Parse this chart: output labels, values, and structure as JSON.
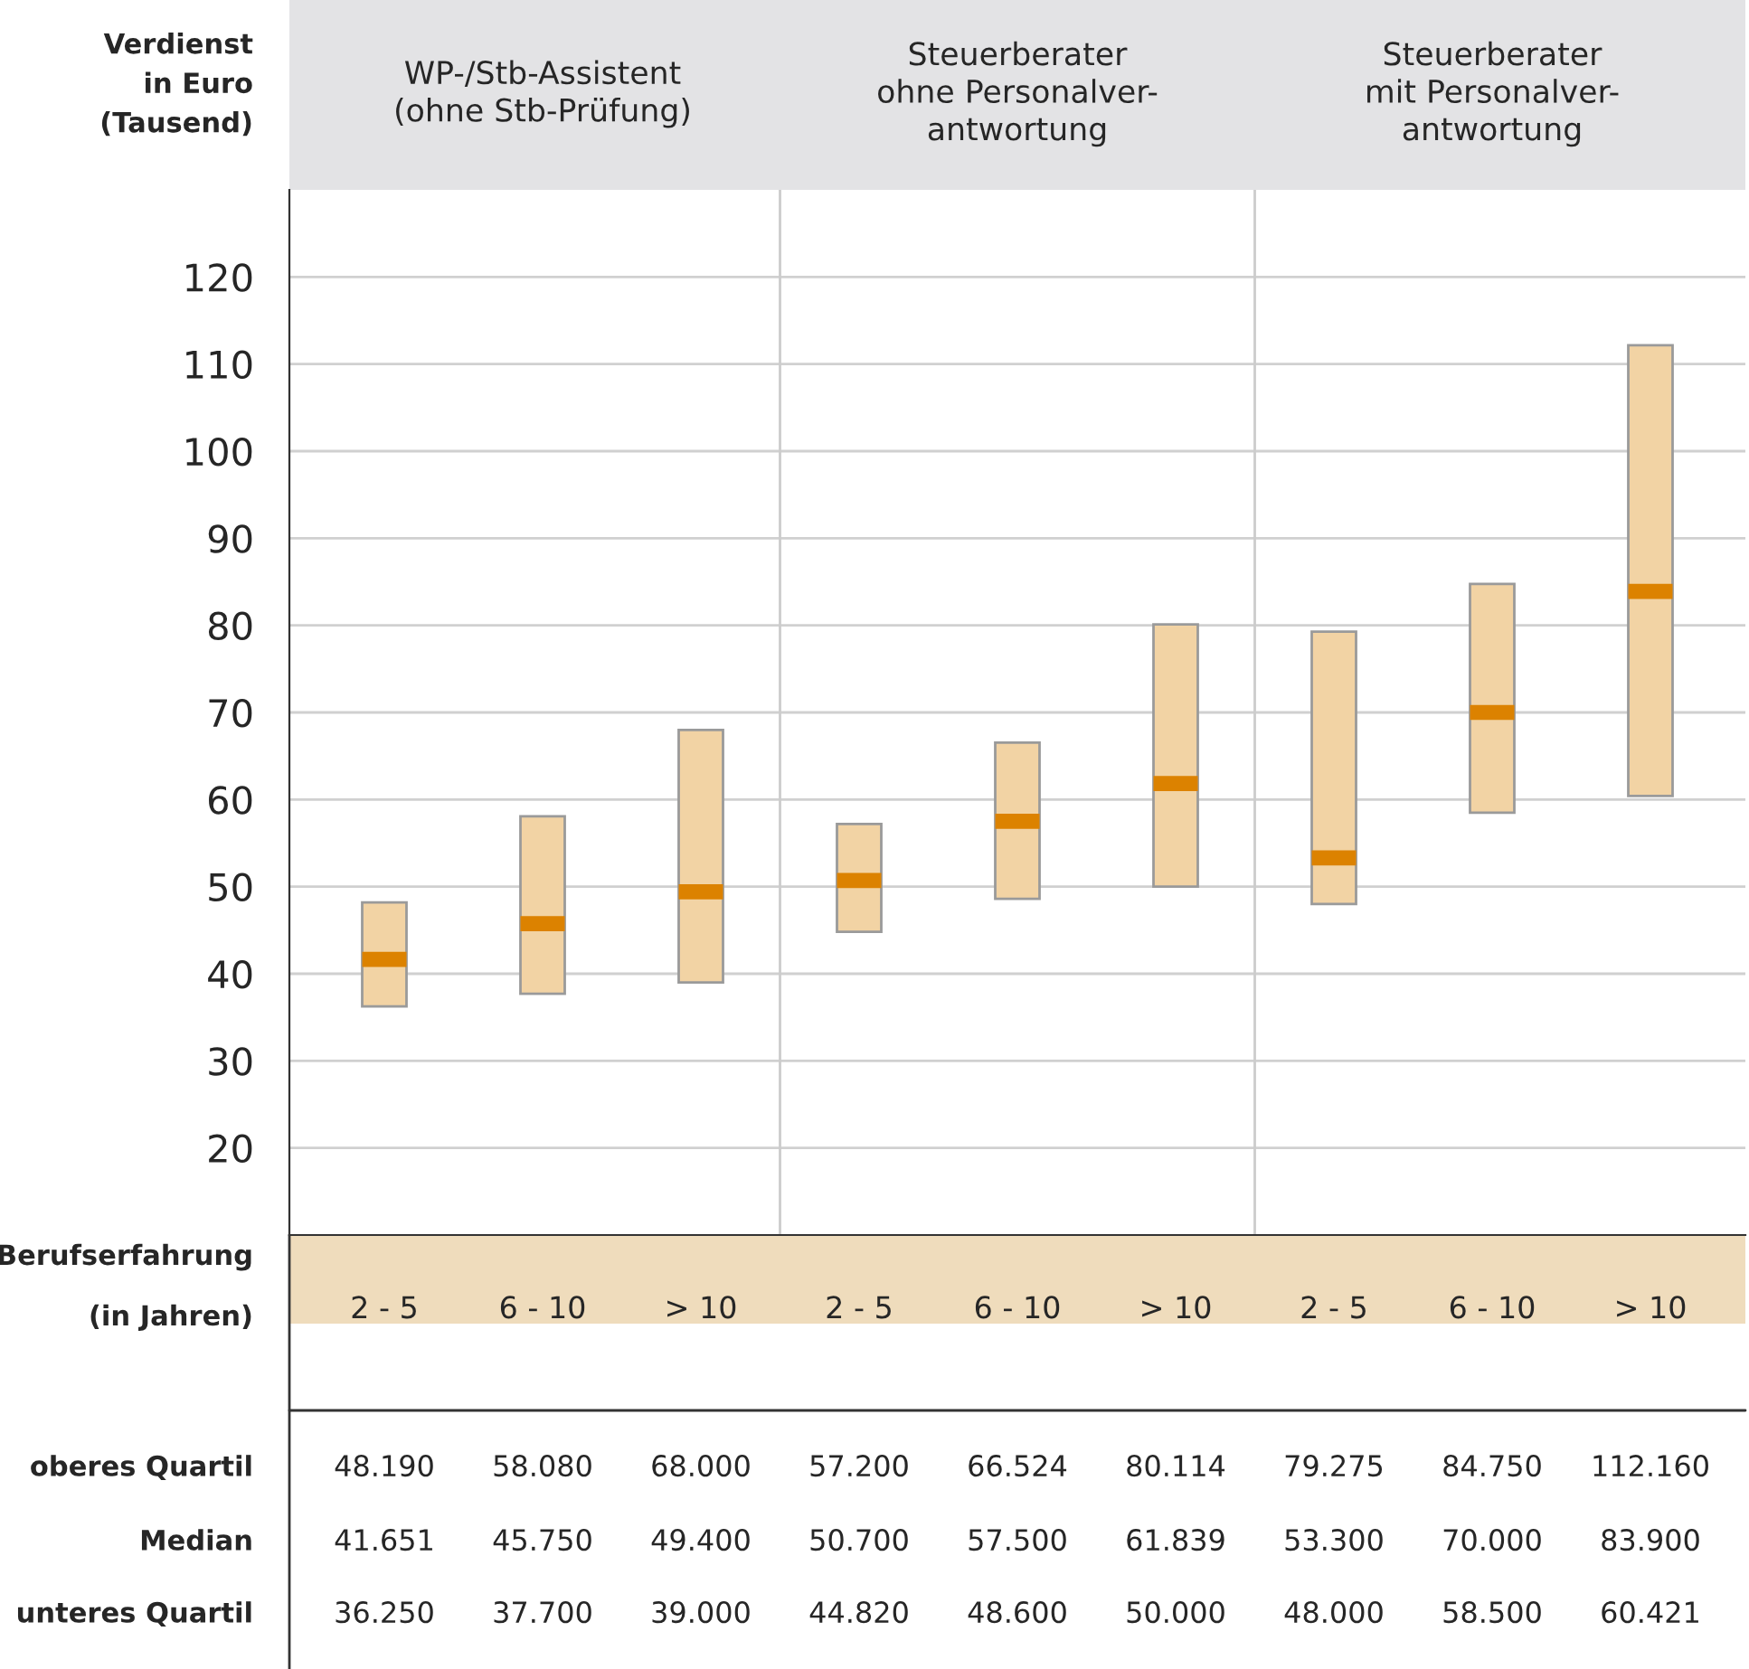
{
  "chart_data": {
    "type": "box",
    "ylabel": "Verdienst\nin Euro\n(Tausend)",
    "xlabel": "Berufserfahrung\n(in Jahren)",
    "categories": [
      "2 - 5",
      "6 - 10",
      "> 10",
      "2 - 5",
      "6 - 10",
      "> 10",
      "2 - 5",
      "6 - 10",
      "> 10"
    ],
    "series": [
      {
        "color": "#f2d3a4",
        "boxes": [
          {
            "q1": 36.25,
            "median": 41.651,
            "q3": 48.19
          },
          {
            "q1": 37.7,
            "median": 45.75,
            "q3": 58.08
          },
          {
            "q1": 39.0,
            "median": 49.4,
            "q3": 68.0
          },
          {
            "q1": 44.82,
            "median": 50.7,
            "q3": 57.2
          },
          {
            "q1": 48.6,
            "median": 57.5,
            "q3": 66.524
          },
          {
            "q1": 50.0,
            "median": 61.839,
            "q3": 80.114
          },
          {
            "q1": 48.0,
            "median": 53.3,
            "q3": 79.275
          },
          {
            "q1": 58.5,
            "median": 70.0,
            "q3": 84.75
          },
          {
            "q1": 60.421,
            "median": 83.9,
            "q3": 112.16
          }
        ],
        "value_labels": [
          [
            "48.190",
            "41.651",
            "36.250"
          ],
          [
            "58.080",
            "45.750",
            "37.700"
          ],
          [
            "68.000",
            "49.400",
            "39.000"
          ],
          [
            "57.200",
            "50.700",
            "44.820"
          ],
          [
            "66.524",
            "57.500",
            "48.600"
          ],
          [
            "80.114",
            "61.839",
            "50.000"
          ],
          [
            "79.275",
            "53.300",
            "48.000"
          ],
          [
            "84.750",
            "70.000",
            "58.500"
          ],
          [
            "112.160",
            "83.900",
            "60.421"
          ]
        ]
      }
    ],
    "ylim": [
      10,
      130
    ],
    "yticks": [
      20,
      30,
      40,
      50,
      60,
      70,
      80,
      90,
      100,
      110,
      120
    ],
    "grid": "y",
    "annotations": [
      "WP-/Stb-Assistent\n(ohne Stb-Prüfung)",
      "Steuerberater\nohne Personalver-\nantwortung",
      "Steuerberater\nmit Personalver-\nantwortung",
      "oberes Quartil",
      "Median",
      "unteres Quartil"
    ]
  }
}
